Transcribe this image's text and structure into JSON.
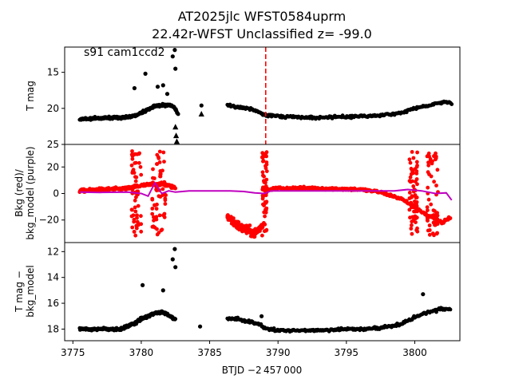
{
  "figure": {
    "title_line1": "AT2025jlc  WFST0584uprm",
    "title_line2": "22.42r-WFST Unclassified z= -99.0",
    "xlabel": "BTJD −2 457 000",
    "x_ticks": [
      "3775",
      "3780",
      "3785",
      "3790",
      "3795",
      "3800"
    ],
    "colors": {
      "tmag": "#000000",
      "bkg": "#ff0000",
      "bkg_model": "#bf00bf",
      "vline": "#ff0000"
    }
  },
  "chart_data": [
    {
      "type": "scatter",
      "panel": "top",
      "ylabel": "T mag",
      "annotation": "s91 cam1ccd2",
      "y_inverted": true,
      "xlim": [
        3774.4,
        3803.3
      ],
      "ylim": [
        25.0,
        11.5
      ],
      "y_ticks": [
        "15",
        "20",
        "25"
      ],
      "vline_x": 3789.1,
      "series": [
        {
          "marker": "dots",
          "segments": [
            {
              "x": [
                3775.5,
                3776.5,
                3777.5,
                3778.5,
                3779.0,
                3779.5,
                3780.0,
                3780.5,
                3781.0,
                3781.5,
                3782.0,
                3782.4,
                3782.7
              ],
              "y": [
                21.5,
                21.4,
                21.3,
                21.3,
                21.2,
                21.0,
                20.6,
                20.2,
                19.7,
                19.6,
                19.5,
                19.8,
                20.8
              ]
            },
            {
              "x": [
                3786.3,
                3787.0,
                3787.8,
                3788.3,
                3788.8,
                3789.2,
                3790.0,
                3791.5,
                3793.0,
                3794.5,
                3796.0,
                3797.5,
                3799.0,
                3800.0,
                3801.0,
                3801.8,
                3802.3,
                3802.7
              ],
              "y": [
                19.6,
                19.8,
                20.0,
                20.3,
                20.7,
                21.0,
                21.1,
                21.2,
                21.3,
                21.2,
                21.1,
                21.0,
                20.6,
                20.0,
                19.6,
                19.3,
                19.0,
                19.4
              ]
            }
          ],
          "outliers": {
            "x": [
              3779.5,
              3780.3,
              3781.2,
              3781.6,
              3781.9,
              3782.3,
              3782.45,
              3782.5,
              3784.4
            ],
            "y": [
              17.2,
              15.2,
              17.0,
              16.8,
              18.0,
              12.8,
              11.9,
              14.5,
              19.6
            ]
          }
        },
        {
          "marker": "triangles",
          "x": [
            3782.5,
            3782.55,
            3782.6,
            3784.4
          ],
          "y": [
            22.6,
            23.8,
            24.6,
            20.8
          ]
        }
      ]
    },
    {
      "type": "scatter",
      "panel": "middle",
      "ylabel_line1": "Bkg (red)/",
      "ylabel_line2": "bkg_model (purple)",
      "xlim": [
        3774.4,
        3803.3
      ],
      "ylim": [
        -37,
        37
      ],
      "y_ticks": [
        "20",
        "0",
        "−20"
      ],
      "bkg_segments": [
        {
          "x": [
            3775.5,
            3777.0,
            3778.5,
            3779.2,
            3779.6,
            3780.0,
            3780.5,
            3781.0,
            3781.5,
            3782.0,
            3782.5
          ],
          "y": [
            2.0,
            3.0,
            3.5,
            4.0,
            5.0,
            6.0,
            6.5,
            7.0,
            7.0,
            6.0,
            4.0
          ]
        },
        {
          "x": [
            3786.3,
            3786.8,
            3787.3,
            3787.8,
            3788.3,
            3788.8
          ],
          "y": [
            -17.0,
            -22.0,
            -26.0,
            -28.0,
            -30.0,
            -25.0
          ]
        },
        {
          "x": [
            3789.2,
            3790.0,
            3791.5,
            3793.0,
            3794.5,
            3796.0,
            3797.5,
            3799.0,
            3800.0,
            3801.0,
            3802.0,
            3802.6
          ],
          "y": [
            3.0,
            4.0,
            4.0,
            4.0,
            3.5,
            3.0,
            1.0,
            -4.0,
            -10.0,
            -17.0,
            -22.0,
            -18.0
          ]
        }
      ],
      "bkg_model": {
        "x": [
          3775.5,
          3777.0,
          3779.0,
          3780.0,
          3780.5,
          3781.0,
          3781.5,
          3782.0,
          3782.5,
          3783.5,
          3785.0,
          3786.5,
          3787.5,
          3788.3,
          3789.0,
          3789.5,
          3791.0,
          3793.0,
          3795.0,
          3797.0,
          3798.5,
          3799.5,
          3800.5,
          3801.5,
          3802.3,
          3802.7
        ],
        "y": [
          1.0,
          0.8,
          1.0,
          0.0,
          -2.0,
          8.0,
          0.0,
          2.0,
          1.0,
          2.0,
          2.0,
          2.0,
          1.5,
          0.5,
          0.0,
          2.0,
          2.0,
          2.0,
          2.0,
          2.0,
          2.0,
          3.0,
          2.0,
          0.0,
          0.5,
          -5.0
        ]
      },
      "spike_zones": [
        {
          "x_from": 3779.3,
          "x_to": 3780.0
        },
        {
          "x_from": 3780.8,
          "x_to": 3781.8
        },
        {
          "x_from": 3788.8,
          "x_to": 3789.2
        },
        {
          "x_from": 3799.6,
          "x_to": 3800.2
        },
        {
          "x_from": 3800.9,
          "x_to": 3801.7
        }
      ]
    },
    {
      "type": "scatter",
      "panel": "bottom",
      "ylabel_line1": "T mag −",
      "ylabel_line2": "bkg_model",
      "y_inverted": true,
      "xlim": [
        3774.4,
        3803.3
      ],
      "ylim": [
        18.9,
        11.3
      ],
      "y_ticks": [
        "12",
        "14",
        "16",
        "18"
      ],
      "segments": [
        {
          "x": [
            3775.5,
            3777.0,
            3778.5,
            3779.5,
            3780.0,
            3780.5,
            3781.0,
            3781.5,
            3782.0,
            3782.5
          ],
          "y": [
            18.0,
            18.0,
            18.0,
            17.6,
            17.2,
            17.0,
            16.8,
            16.7,
            16.9,
            17.3
          ]
        },
        {
          "x": [
            3786.3,
            3787.0,
            3787.8,
            3788.5,
            3789.2,
            3790.0,
            3791.5,
            3793.0,
            3794.5,
            3796.0,
            3797.5,
            3799.0,
            3800.0,
            3801.0,
            3802.0,
            3802.6
          ],
          "y": [
            17.2,
            17.2,
            17.4,
            17.6,
            18.0,
            18.1,
            18.1,
            18.1,
            18.0,
            18.0,
            17.9,
            17.6,
            17.1,
            16.7,
            16.4,
            16.5
          ]
        }
      ],
      "outliers": {
        "x": [
          3780.1,
          3781.6,
          3782.3,
          3782.45,
          3782.5,
          3784.3,
          3788.8,
          3800.6
        ],
        "y": [
          14.6,
          15.0,
          12.6,
          11.8,
          13.2,
          17.8,
          17.0,
          15.3
        ]
      }
    }
  ]
}
